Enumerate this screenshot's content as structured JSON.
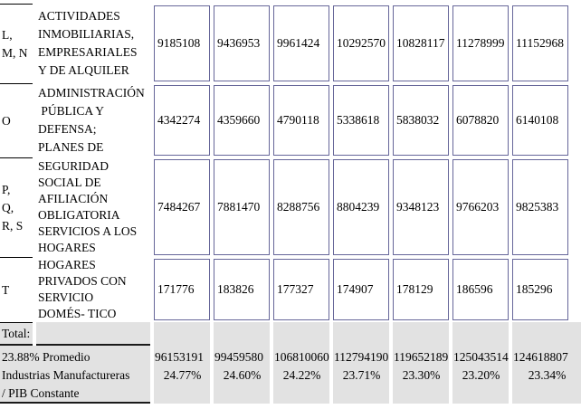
{
  "chart_data": {
    "type": "table",
    "rows": [
      {
        "code": "L, M, N",
        "description": "ACTIVIDADES INMOBILIARIAS, EMPRESARIALES Y DE ALQUILER",
        "values": [
          9185108,
          9436953,
          9961424,
          10292570,
          10828117,
          11278999,
          11152968
        ]
      },
      {
        "code": "O",
        "description": "ADMINISTRACIÓN PÚBLICA Y DEFENSA; PLANES DE SEGURIDAD SOCIAL DE AFILIACIÓN OBLIGATORIA",
        "values": [
          4342274,
          4359660,
          4790118,
          5338618,
          5838032,
          6078820,
          6140108
        ]
      },
      {
        "code": "P, Q, R, S",
        "description": "SERVICIOS A LOS HOGARES",
        "values": [
          7484267,
          7881470,
          8288756,
          8804239,
          9348123,
          9766203,
          9825383
        ]
      },
      {
        "code": "T",
        "description": "HOGARES PRIVADOS CON SERVICIO DOMÉS- TICO",
        "values": [
          171776,
          183826,
          177327,
          174907,
          178129,
          186596,
          185296
        ]
      }
    ],
    "total": {
      "label": "Total:",
      "values": [
        96153191,
        99459580,
        106810060,
        112794190,
        119652189,
        125043514,
        124618807
      ],
      "percents": [
        "24.77%",
        "24.60%",
        "24.22%",
        "23.71%",
        "23.30%",
        "23.20%",
        "23.34%"
      ],
      "note": "23.88% Promedio Industrias Manufactureras / PIB Constante"
    }
  },
  "table": {
    "rows": [
      {
        "code": "L,\nM, N",
        "desc": "ACTIVIDADES\nINMOBILIARIAS,\nEMPRESARIALES\nY DE ALQUILER",
        "values": [
          "9185108",
          "9436953",
          "9961424",
          "10292570",
          "10828117",
          "11278999",
          "11152968"
        ]
      },
      {
        "code": "O",
        "desc": "ADMINISTRACIÓN\n PÚBLICA Y\nDEFENSA;\nPLANES DE",
        "values": [
          "4342274",
          "4359660",
          "4790118",
          "5338618",
          "5838032",
          "6078820",
          "6140108"
        ]
      },
      {
        "code": "P,\nQ,\nR, S",
        "desc": "SEGURIDAD\nSOCIAL DE\nAFILIACIÓN\nOBLIGATORIA\nSERVICIOS A LOS\nHOGARES",
        "values": [
          "7484267",
          "7881470",
          "8288756",
          "8804239",
          "9348123",
          "9766203",
          "9825383"
        ]
      },
      {
        "code": "T",
        "desc": "HOGARES\nPRIVADOS CON\nSERVICIO\nDOMÉS- TICO",
        "values": [
          "171776",
          "183826",
          "177327",
          "174907",
          "178129",
          "186596",
          "185296"
        ]
      }
    ],
    "total_label": "Total:",
    "summary_label": "23.88% Promedio\nIndustrias Manufactureras\n/ PIB Constante",
    "bottom": [
      {
        "value": "96153191",
        "percent": "24.77%"
      },
      {
        "value": "99459580",
        "percent": "24.60%"
      },
      {
        "value": "106810060",
        "percent": "24.22%"
      },
      {
        "value": "112794190",
        "percent": "23.71%"
      },
      {
        "value": "119652189",
        "percent": "23.30%"
      },
      {
        "value": "125043514",
        "percent": "23.20%"
      },
      {
        "value": "124618807",
        "percent": "23.34%"
      }
    ]
  },
  "colors": {
    "cell_border": "#666699",
    "gray_fill": "#E2E2E2",
    "rule_black": "#1a1a1a"
  }
}
